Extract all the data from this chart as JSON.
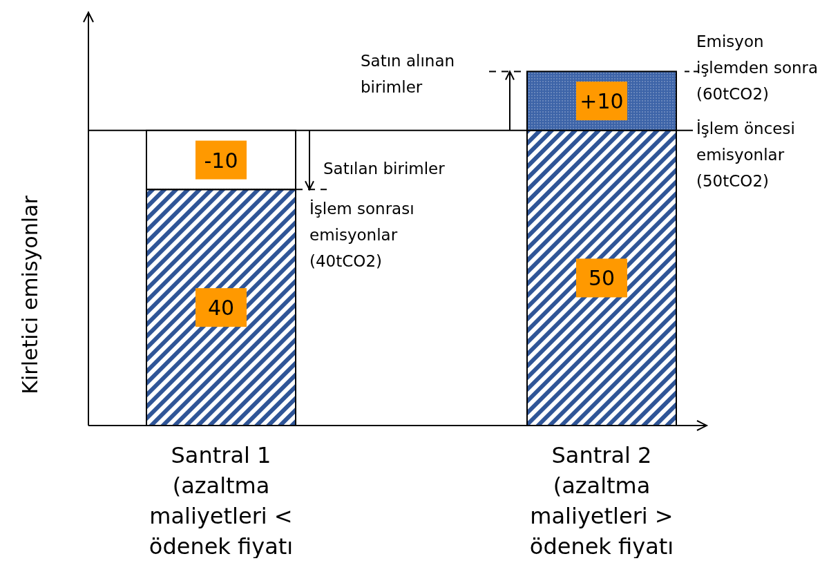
{
  "chart_data": {
    "type": "bar",
    "stacked": true,
    "ylabel": "Kirletici emisyonlar",
    "ylim": [
      0,
      70
    ],
    "tick_labels": "x",
    "categories": [
      "Santral 1\n(azaltma\nmaliyetleri <\nödenek fiyatı",
      "Santral 2\n(azaltma\nmaliyetleri >\nödenek fiyatı"
    ],
    "series": [
      {
        "color": "#2f5597",
        "values": [
          40,
          50
        ],
        "value_labels": [
          "40",
          "50"
        ]
      },
      {
        "colors": [
          "#ffffff",
          "#3d64a8"
        ],
        "values": [
          10,
          10
        ],
        "value_labels": [
          null,
          "+10"
        ]
      }
    ],
    "ref_lines": [
      {
        "axis": "y",
        "value": 50,
        "label": "İşlem öncesi\nemisyonlar\n(50tCO2)"
      }
    ],
    "annotations": [
      "-10",
      "Satın alınan\nbirimler",
      "Satılan birimler",
      "İşlem sonrası\nemisyonlar\n(40tCO2)",
      "Emisyon\nişlemden sonra\n(60tCO2)"
    ]
  }
}
